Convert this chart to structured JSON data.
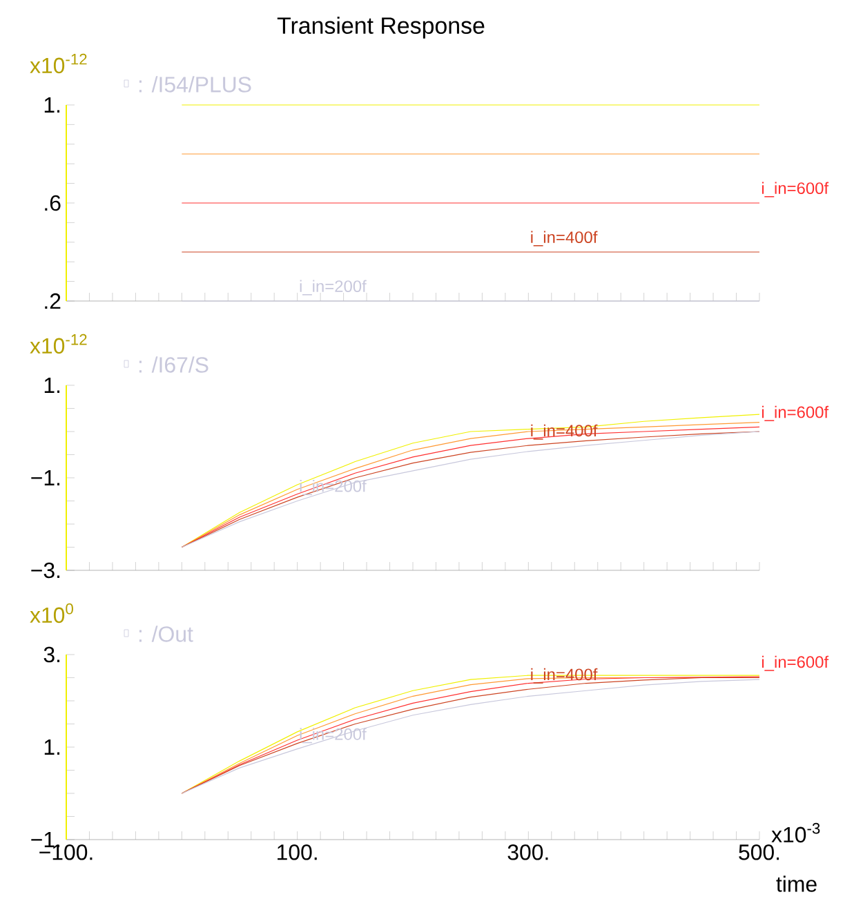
{
  "chart_data": [
    {
      "type": "line",
      "title": "Transient Response",
      "subtitle": ": /I54/PLUS",
      "ylabel": "x10$^{-12}$",
      "tick_labels": "y",
      "xlim": [
        -100,
        500
      ],
      "xticks": [
        -100,
        100,
        300,
        500
      ],
      "ylim": [
        0.2,
        1.0
      ],
      "yticks": [
        {
          "value": 1.0,
          "label": "1."
        },
        {
          "value": 0.6,
          "label": ".6"
        },
        {
          "value": 0.2,
          "label": ".2"
        }
      ],
      "x": [
        0,
        50,
        100,
        150,
        200,
        250,
        300,
        350,
        400,
        450,
        500
      ],
      "series": [
        {
          "color": "#f0f000",
          "values": [
            1.0,
            1.0,
            1.0,
            1.0,
            1.0,
            1.0,
            1.0,
            1.0,
            1.0,
            1.0,
            1.0
          ]
        },
        {
          "color": "#ff9933",
          "values": [
            0.8,
            0.8,
            0.8,
            0.8,
            0.8,
            0.8,
            0.8,
            0.8,
            0.8,
            0.8,
            0.8
          ]
        },
        {
          "name": "i_in=600f",
          "color": "#ff3030",
          "values": [
            0.6,
            0.6,
            0.6,
            0.6,
            0.6,
            0.6,
            0.6,
            0.6,
            0.6,
            0.6,
            0.6
          ]
        },
        {
          "name": "i_in=400f",
          "color": "#cc4422",
          "values": [
            0.4,
            0.4,
            0.4,
            0.4,
            0.4,
            0.4,
            0.4,
            0.4,
            0.4,
            0.4,
            0.4
          ]
        },
        {
          "name": "i_in=200f",
          "color": "#c8c8dc",
          "values": [
            0.2,
            0.2,
            0.2,
            0.2,
            0.2,
            0.2,
            0.2,
            0.2,
            0.2,
            0.2,
            0.2
          ]
        }
      ]
    },
    {
      "type": "line",
      "subtitle": ": /I67/S",
      "ylabel": "x10$^{-12}$",
      "tick_labels": "y",
      "xlim": [
        -100,
        500
      ],
      "xticks": [
        -100,
        100,
        300,
        500
      ],
      "ylim": [
        -3,
        1
      ],
      "yticks": [
        {
          "value": 1,
          "label": "1."
        },
        {
          "value": -1,
          "label": "−1."
        },
        {
          "value": -3,
          "label": "−3."
        }
      ],
      "x": [
        0,
        50,
        100,
        150,
        200,
        250,
        300,
        350,
        400,
        450,
        500
      ],
      "series": [
        {
          "color": "#f0f000",
          "values": [
            -2.5,
            -1.75,
            -1.15,
            -0.65,
            -0.25,
            0.0,
            0.05,
            0.1,
            0.22,
            0.3,
            0.37
          ]
        },
        {
          "color": "#ff9933",
          "values": [
            -2.5,
            -1.8,
            -1.25,
            -0.8,
            -0.4,
            -0.15,
            0.0,
            0.05,
            0.1,
            0.15,
            0.2
          ]
        },
        {
          "name": "i_in=600f",
          "color": "#ff3030",
          "values": [
            -2.5,
            -1.85,
            -1.35,
            -0.9,
            -0.55,
            -0.3,
            -0.15,
            -0.05,
            0.0,
            0.05,
            0.1
          ]
        },
        {
          "name": "i_in=400f",
          "color": "#cc4422",
          "values": [
            -2.5,
            -1.9,
            -1.42,
            -1.0,
            -0.68,
            -0.45,
            -0.3,
            -0.2,
            -0.12,
            -0.05,
            0.0
          ]
        },
        {
          "name": "i_in=200f",
          "color": "#c8c8dc",
          "values": [
            -2.5,
            -1.95,
            -1.5,
            -1.1,
            -0.85,
            -0.6,
            -0.43,
            -0.3,
            -0.19,
            -0.08,
            0.0
          ]
        }
      ]
    },
    {
      "type": "line",
      "subtitle": ": /Out",
      "ylabel": "x10$^{0}$",
      "xlabel": "time",
      "annotations": [
        "x10$^{-3}$"
      ],
      "xlim": [
        -100,
        500
      ],
      "xticks": [
        {
          "value": -100,
          "label": "−100."
        },
        {
          "value": 100,
          "label": "100."
        },
        {
          "value": 300,
          "label": "300."
        },
        {
          "value": 500,
          "label": "500."
        }
      ],
      "ylim": [
        -1,
        3
      ],
      "yticks": [
        {
          "value": 3,
          "label": "3."
        },
        {
          "value": 1,
          "label": "1."
        },
        {
          "value": -1,
          "label": "−1."
        }
      ],
      "x": [
        0,
        50,
        100,
        150,
        200,
        250,
        300,
        350,
        400,
        450,
        500
      ],
      "series": [
        {
          "color": "#f0f000",
          "values": [
            0.0,
            0.7,
            1.33,
            1.85,
            2.22,
            2.46,
            2.55,
            2.55,
            2.55,
            2.55,
            2.55
          ]
        },
        {
          "color": "#ff9933",
          "values": [
            0.0,
            0.65,
            1.25,
            1.72,
            2.1,
            2.35,
            2.48,
            2.5,
            2.5,
            2.5,
            2.5
          ]
        },
        {
          "name": "i_in=600f",
          "color": "#ff3030",
          "values": [
            0.0,
            0.62,
            1.15,
            1.6,
            1.95,
            2.2,
            2.38,
            2.47,
            2.5,
            2.51,
            2.52
          ]
        },
        {
          "name": "i_in=400f",
          "color": "#cc4422",
          "values": [
            0.0,
            0.6,
            1.08,
            1.5,
            1.82,
            2.08,
            2.25,
            2.38,
            2.45,
            2.5,
            2.5
          ]
        },
        {
          "name": "i_in=200f",
          "color": "#c8c8dc",
          "values": [
            0.0,
            0.55,
            0.96,
            1.35,
            1.69,
            1.92,
            2.1,
            2.22,
            2.34,
            2.42,
            2.46
          ]
        }
      ]
    }
  ]
}
